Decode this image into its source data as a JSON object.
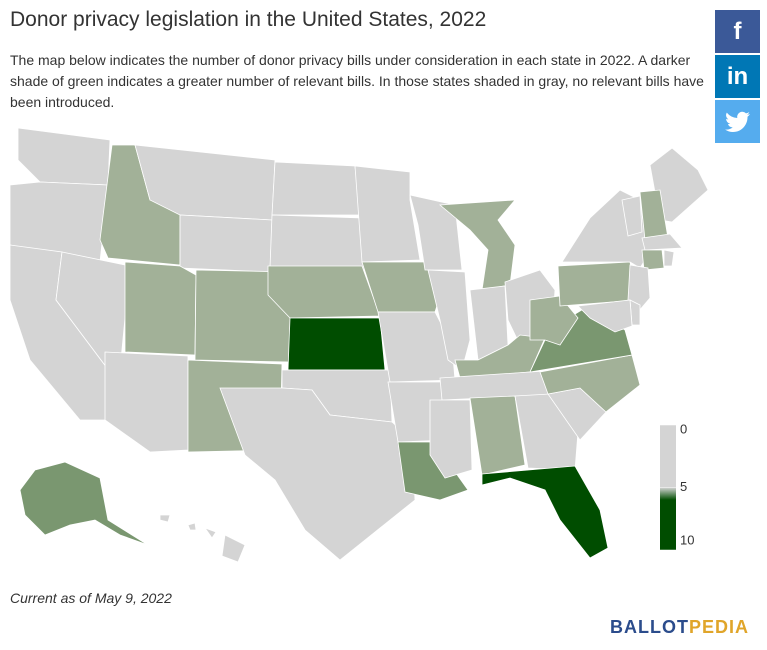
{
  "header": {
    "title": "Donor privacy legislation in the United States, 2022",
    "subtitle": "The map below indicates the number of donor privacy bills under consideration in each state in 2022. A darker shade of green indicates a greater number of relevant bills. In those states shaded in gray, no relevant bills have been introduced."
  },
  "share_buttons": [
    "f",
    "in"
  ],
  "map": {
    "states": [
      {
        "value": 0,
        "color": "#d4d4d4"
      },
      {
        "value": 0,
        "color": "#d4d4d4"
      },
      {
        "value": 0,
        "color": "#d4d4d4"
      },
      {
        "value": 0,
        "color": "#d4d4d4"
      },
      {
        "value": 1,
        "color": "#a2b198"
      },
      {
        "value": 0,
        "color": "#d4d4d4"
      },
      {
        "value": 0,
        "color": "#d4d4d4"
      },
      {
        "value": 1,
        "color": "#a2b198"
      },
      {
        "value": 1,
        "color": "#a2b198"
      },
      {
        "value": 0,
        "color": "#d4d4d4"
      },
      {
        "value": 1,
        "color": "#a2b198"
      },
      {
        "value": 0,
        "color": "#d4d4d4"
      },
      {
        "value": 0,
        "color": "#d4d4d4"
      },
      {
        "value": 1,
        "color": "#a2b198"
      },
      {
        "value": 10,
        "color": "#004d00"
      },
      {
        "value": 0,
        "color": "#d4d4d4"
      },
      {
        "value": 0,
        "color": "#d4d4d4"
      },
      {
        "value": 0,
        "color": "#d4d4d4"
      },
      {
        "value": 1,
        "color": "#a2b198"
      },
      {
        "value": 0,
        "color": "#d4d4d4"
      },
      {
        "value": 0,
        "color": "#d4d4d4"
      },
      {
        "value": 4,
        "color": "#7a9770"
      },
      {
        "value": 0,
        "color": "#d4d4d4"
      },
      {
        "value": 0,
        "color": "#d4d4d4"
      },
      {
        "value": 1,
        "color": "#a2b198"
      },
      {
        "value": 0,
        "color": "#d4d4d4"
      },
      {
        "value": 0,
        "color": "#d4d4d4"
      },
      {
        "value": 1,
        "color": "#a2b198"
      },
      {
        "value": 0,
        "color": "#d4d4d4"
      },
      {
        "value": 0,
        "color": "#d4d4d4"
      },
      {
        "value": 1,
        "color": "#a2b198"
      },
      {
        "value": 0,
        "color": "#d4d4d4"
      },
      {
        "value": 10,
        "color": "#004d00"
      },
      {
        "value": 0,
        "color": "#d4d4d4"
      },
      {
        "value": 1,
        "color": "#a2b198"
      },
      {
        "value": 4,
        "color": "#7a9770"
      },
      {
        "value": 1,
        "color": "#a2b198"
      },
      {
        "value": 1,
        "color": "#a2b198"
      },
      {
        "value": 0,
        "color": "#d4d4d4"
      },
      {
        "value": 0,
        "color": "#d4d4d4"
      },
      {
        "value": 0,
        "color": "#d4d4d4"
      },
      {
        "value": 1,
        "color": "#a2b198"
      },
      {
        "value": 0,
        "color": "#d4d4d4"
      },
      {
        "value": 1,
        "color": "#a2b198"
      },
      {
        "value": 0,
        "color": "#d4d4d4"
      },
      {
        "value": 0,
        "color": "#d4d4d4"
      },
      {
        "value": 0,
        "color": "#d4d4d4"
      },
      {
        "value": 0,
        "color": "#d4d4d4"
      },
      {
        "value": 4,
        "color": "#7a9770"
      },
      {
        "value": 0,
        "color": "#d4d4d4"
      }
    ],
    "legend": {
      "lim": [
        0,
        10
      ],
      "ticks": [
        0,
        5,
        10
      ],
      "stops": [
        {
          "value": 0,
          "color": "#d4d4d4"
        },
        {
          "value": 5,
          "color": "#d4d4d4"
        },
        {
          "value": 6,
          "color": "#004d00"
        },
        {
          "value": 10,
          "color": "#004d00"
        }
      ]
    }
  },
  "footer": {
    "note": "Current as of May 9, 2022",
    "logo": [
      "BALLOT",
      "PEDIA"
    ]
  }
}
